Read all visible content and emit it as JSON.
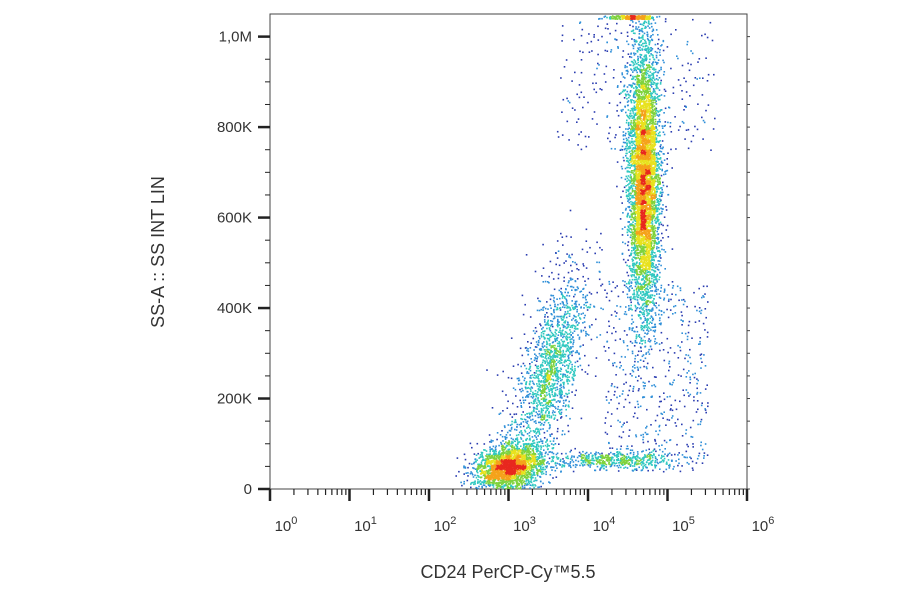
{
  "chart_data": {
    "type": "scatter",
    "title": "",
    "xlabel": "CD24 PerCP-Cy™5.5",
    "ylabel": "SS-A :: SS INT LIN",
    "x_scale": "log",
    "xlim": [
      1,
      1000000
    ],
    "ylim": [
      0,
      1050000
    ],
    "x_ticks": [
      {
        "base": "10",
        "exp": "0",
        "value": 1
      },
      {
        "base": "10",
        "exp": "1",
        "value": 10
      },
      {
        "base": "10",
        "exp": "2",
        "value": 100
      },
      {
        "base": "10",
        "exp": "3",
        "value": 1000
      },
      {
        "base": "10",
        "exp": "4",
        "value": 10000
      },
      {
        "base": "10",
        "exp": "5",
        "value": 100000
      },
      {
        "base": "10",
        "exp": "6",
        "value": 1000000
      }
    ],
    "y_ticks": [
      {
        "label": "0",
        "value": 0
      },
      {
        "label": "200K",
        "value": 200000
      },
      {
        "label": "400K",
        "value": 400000
      },
      {
        "label": "600K",
        "value": 600000
      },
      {
        "label": "800K",
        "value": 800000
      },
      {
        "label": "1,0M",
        "value": 1000000
      }
    ],
    "grid": false,
    "legend": "none",
    "color_scale": [
      "#2a3cb0",
      "#2f8fd8",
      "#30c8c0",
      "#7ed23c",
      "#e8e21e",
      "#f5a21a",
      "#e8281e"
    ],
    "populations": [
      {
        "center_x": 1000,
        "center_y": 50000,
        "count": 2200
      },
      {
        "center_x": 3500,
        "center_y": 260000,
        "count": 900
      },
      {
        "center_x": 50000,
        "center_y": 690000,
        "count": 5200
      },
      {
        "center_x": 20000,
        "center_y": 65000,
        "count": 500
      }
    ]
  }
}
